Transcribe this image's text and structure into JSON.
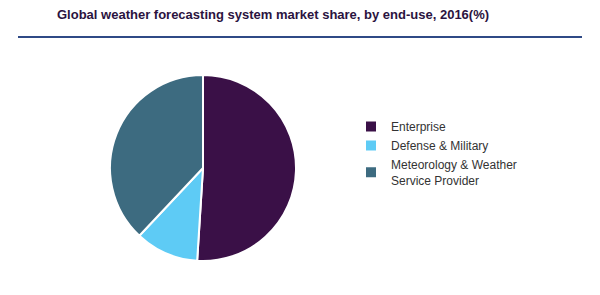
{
  "chart_data": {
    "type": "pie",
    "title": "Global weather forecasting system market share, by end-use, 2016(%)",
    "categories": [
      "Enterprise",
      "Defense & Military",
      "Meteorology & Weather Service Provider"
    ],
    "values": [
      51,
      11,
      38
    ],
    "colors": [
      "#3a1047",
      "#5ecbf5",
      "#3d6b80"
    ],
    "legend": "right"
  }
}
